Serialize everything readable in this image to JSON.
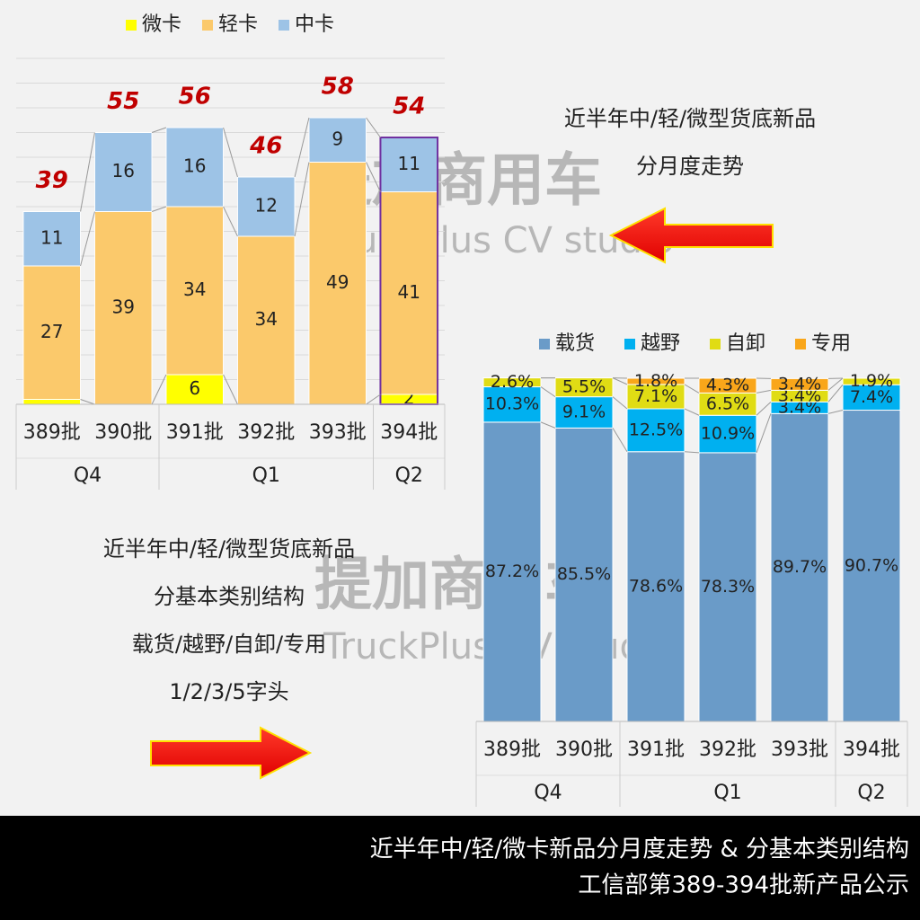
{
  "chart_data": [
    {
      "type": "stacked_bar",
      "categories": [
        "389批",
        "390批",
        "391批",
        "392批",
        "393批",
        "394批"
      ],
      "group_labels": [
        "Q4",
        "Q1",
        "Q2"
      ],
      "group_sizes": [
        2,
        3,
        1
      ],
      "series": [
        {
          "name": "微卡",
          "color": "#ffff00",
          "values": [
            1,
            0,
            6,
            0,
            0,
            2
          ]
        },
        {
          "name": "轻卡",
          "color": "#fbc96b",
          "values": [
            27,
            39,
            34,
            34,
            49,
            41
          ]
        },
        {
          "name": "中卡",
          "color": "#9dc3e6",
          "values": [
            11,
            16,
            16,
            12,
            9,
            11
          ]
        }
      ],
      "totals": [
        39,
        55,
        56,
        46,
        58,
        54
      ],
      "ylim": [
        0,
        70
      ],
      "yticks": [
        0,
        5,
        10,
        15,
        20,
        25,
        30,
        35,
        40,
        45,
        50,
        55,
        60,
        65,
        70
      ],
      "ytick_labels_shown": false,
      "grid": true,
      "highlight_last": true,
      "annotation": [
        "近半年中/轻/微型货底新品",
        "分月度走势"
      ]
    },
    {
      "type": "stacked_bar",
      "categories": [
        "389批",
        "390批",
        "391批",
        "392批",
        "393批",
        "394批"
      ],
      "group_labels": [
        "Q4",
        "Q1",
        "Q2"
      ],
      "group_sizes": [
        2,
        3,
        1
      ],
      "series": [
        {
          "name": "载货",
          "color": "#6a9bc8",
          "values": [
            87.2,
            85.5,
            78.6,
            78.3,
            89.7,
            90.7
          ],
          "value_labels": [
            "87.2%",
            "85.5%",
            "78.6%",
            "78.3%",
            "89.7%",
            "90.7%"
          ]
        },
        {
          "name": "越野",
          "color": "#00b0f0",
          "values": [
            10.3,
            9.1,
            12.5,
            10.9,
            3.4,
            7.4
          ],
          "value_labels": [
            "10.3%",
            "9.1%",
            "12.5%",
            "10.9%",
            "3.4%",
            "7.4%"
          ]
        },
        {
          "name": "自卸",
          "color": "#e0dc14",
          "values": [
            2.6,
            5.5,
            7.1,
            6.5,
            3.4,
            1.9
          ],
          "value_labels": [
            "2.6%",
            "5.5%",
            "7.1%",
            "6.5%",
            "3.4%",
            "1.9%"
          ]
        },
        {
          "name": "专用",
          "color": "#f9a61a",
          "values": [
            0,
            0,
            1.8,
            4.3,
            3.4,
            0
          ],
          "value_labels": [
            null,
            null,
            "1.8%",
            "4.3%",
            "3.4%",
            null
          ]
        }
      ],
      "ylim": [
        0,
        100
      ],
      "grid": false,
      "annotation": [
        "近半年中/轻/微型货底新品",
        "分基本类别结构",
        "载货/越野/自卸/专用",
        "1/2/3/5字头"
      ]
    }
  ],
  "watermark": [
    "提加商用车",
    "TruckPlus CV studio"
  ],
  "footer": [
    "近半年中/轻/微卡新品分月度走势 & 分基本类别结构",
    "工信部第389-394批新产品公示"
  ]
}
